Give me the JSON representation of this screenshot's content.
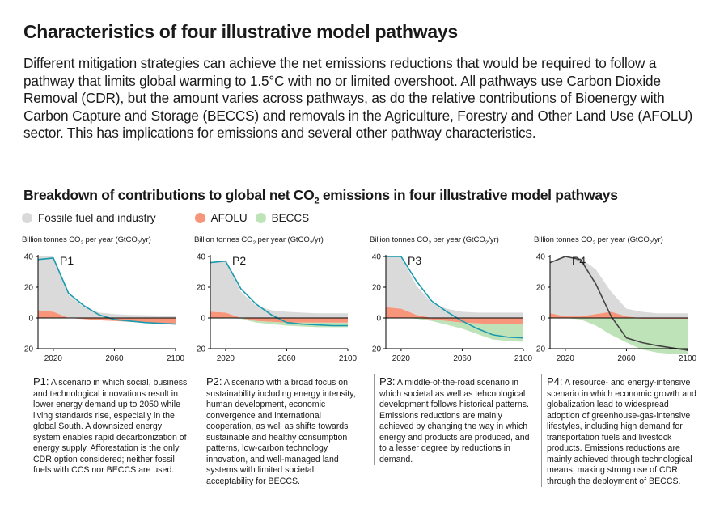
{
  "title": "Characteristics of four illustrative model pathways",
  "intro": "Different mitigation strategies can achieve the net emissions reductions that would be required to follow a pathway that limits global warming to 1.5°C with no or limited overshoot. All pathways use Carbon Dioxide Removal (CDR), but the amount varies across pathways, as do the relative contributions of Bioenergy with Carbon Capture and Storage (BECCS) and removals in the Agriculture, Forestry and Other Land Use (AFOLU) sector. This has implications for emissions and several other pathway characteristics.",
  "subtitle_pre": "Breakdown of contributions to global net CO",
  "subtitle_sub": "2",
  "subtitle_post": " emissions in four illustrative model pathways",
  "legend": [
    {
      "label": "Fossile fuel and industry",
      "color": "#d9d9d9"
    },
    {
      "label": "AFOLU",
      "color": "#f7967a"
    },
    {
      "label": "BECCS",
      "color": "#bfe3b8"
    }
  ],
  "colors": {
    "fossil": "#dadada",
    "afolu": "#f7967a",
    "beccs": "#bfe3b8",
    "net_p1_p3": "#1a9aae",
    "net_p4": "#444444",
    "axis": "#000000"
  },
  "ytitle": {
    "pre": "Billion tonnes CO",
    "sub": "2",
    "mid": " per year (GtCO",
    "sub2": "2",
    "post": "/yr)"
  },
  "chart_data": [
    {
      "type": "area",
      "name": "P1",
      "x": [
        2010,
        2020,
        2030,
        2040,
        2050,
        2060,
        2070,
        2080,
        2090,
        2100
      ],
      "ylim": [
        -20,
        40
      ],
      "yticks": [
        40,
        20,
        0,
        -20
      ],
      "xticks": [
        2020,
        2060,
        2100
      ],
      "series": [
        {
          "name": "Fossile fuel and industry",
          "values": [
            35,
            36,
            15,
            7,
            3.5,
            2.5,
            2,
            1.8,
            1.6,
            1.5
          ]
        },
        {
          "name": "AFOLU",
          "values": [
            5,
            4,
            0,
            -0.7,
            -1.5,
            -2,
            -2.5,
            -3,
            -3.2,
            -3.5
          ]
        },
        {
          "name": "BECCS",
          "values": [
            0,
            0,
            0,
            0,
            0,
            0,
            0,
            0,
            0,
            0
          ]
        },
        {
          "name": "Net",
          "values": [
            38,
            39,
            16,
            8,
            2,
            -1,
            -2,
            -3,
            -3.5,
            -4
          ]
        }
      ]
    },
    {
      "type": "area",
      "name": "P2",
      "x": [
        2010,
        2020,
        2030,
        2040,
        2050,
        2060,
        2070,
        2080,
        2090,
        2100
      ],
      "ylim": [
        -20,
        40
      ],
      "yticks": [
        40,
        20,
        0,
        -20
      ],
      "xticks": [
        2020,
        2060,
        2100
      ],
      "series": [
        {
          "name": "Fossile fuel and industry",
          "values": [
            32,
            34,
            17,
            8,
            5,
            4,
            3.5,
            3,
            3,
            3
          ]
        },
        {
          "name": "AFOLU",
          "values": [
            4,
            3.5,
            0,
            -2,
            -2.5,
            -3,
            -3,
            -3,
            -3,
            -3
          ]
        },
        {
          "name": "BECCS",
          "values": [
            0,
            0,
            -0.5,
            -1,
            -1.5,
            -2,
            -2.5,
            -3,
            -3,
            -3
          ]
        },
        {
          "name": "Net",
          "values": [
            36,
            37,
            19,
            9,
            2,
            -3,
            -4,
            -4.5,
            -5,
            -5
          ]
        }
      ]
    },
    {
      "type": "area",
      "name": "P3",
      "x": [
        2010,
        2020,
        2030,
        2040,
        2050,
        2060,
        2070,
        2080,
        2090,
        2100
      ],
      "ylim": [
        -20,
        40
      ],
      "yticks": [
        40,
        20,
        0,
        -20
      ],
      "xticks": [
        2020,
        2060,
        2100
      ],
      "series": [
        {
          "name": "Fossile fuel and industry",
          "values": [
            33,
            34,
            19,
            10,
            6,
            4,
            3.5,
            3.5,
            3.5,
            3.5
          ]
        },
        {
          "name": "AFOLU",
          "values": [
            7,
            6,
            2,
            -1,
            -2,
            -3,
            -3.5,
            -4,
            -4,
            -4
          ]
        },
        {
          "name": "BECCS",
          "values": [
            0,
            0,
            -0.5,
            -1,
            -2.5,
            -4,
            -7,
            -10,
            -11,
            -11.5
          ]
        },
        {
          "name": "Net",
          "values": [
            40,
            40,
            24,
            11,
            4,
            -2,
            -7,
            -11,
            -12.5,
            -13
          ]
        }
      ]
    },
    {
      "type": "area",
      "name": "P4",
      "x": [
        2010,
        2020,
        2030,
        2040,
        2050,
        2060,
        2070,
        2080,
        2090,
        2100
      ],
      "ylim": [
        -20,
        40
      ],
      "yticks": [
        40,
        20,
        0,
        -20
      ],
      "xticks": [
        2020,
        2060,
        2100
      ],
      "series": [
        {
          "name": "Fossile fuel and industry",
          "values": [
            33,
            39,
            38,
            29,
            13,
            5,
            4,
            3,
            3,
            3
          ]
        },
        {
          "name": "AFOLU",
          "values": [
            3,
            1,
            1,
            2.5,
            4,
            1,
            -0.5,
            -0.5,
            -0.5,
            -0.5
          ]
        },
        {
          "name": "BECCS",
          "values": [
            0,
            0,
            -1,
            -5,
            -11,
            -16,
            -20,
            -22,
            -23,
            -23
          ]
        },
        {
          "name": "Net",
          "values": [
            36,
            40,
            38,
            22,
            1,
            -13,
            -16,
            -18,
            -19.5,
            -21
          ]
        }
      ]
    }
  ],
  "descriptions": [
    {
      "label": "P1:",
      "text": " A scenario in which social, business and technological innovations result in lower energy demand up to 2050 while living standards rise, especially in the global South. A downsized energy system enables rapid decarbonization of energy supply. Afforestation is the only CDR option considered; neither fossil fuels with CCS nor BECCS are used."
    },
    {
      "label": "P2:",
      "text": " A scenario with a broad focus on sustainability including energy intensity, human development, economic convergence and international cooperation, as well as shifts towards sustainable and healthy consumption patterns, low-carbon technology innovation, and well-managed land systems with limited societal acceptability for BECCS."
    },
    {
      "label": "P3:",
      "text": " A middle-of-the-road scenario in which societal as well as tehcnological development follows historical patterns. Emissions reductions are mainly achieved by changing the way in which energy and products are produced, and to a lesser degree by reductions in demand."
    },
    {
      "label": "P4:",
      "text": " A resource- and energy-intensive scenario in which economic growth and globalization lead to widespread adoption of greenhouse-gas-intensive lifestyles, including high demand for transportation fuels and livestock products. Emissions reductions are mainly achieved through technological means, making strong use of CDR through the deployment of BECCS."
    }
  ]
}
